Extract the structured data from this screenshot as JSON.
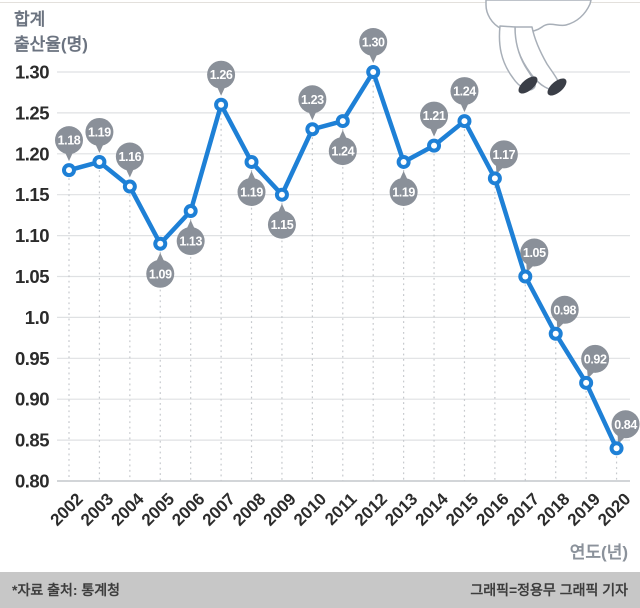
{
  "y_axis_title": {
    "line1": "합계",
    "line2": "출산율(명)"
  },
  "chart_data": {
    "type": "line",
    "title": "합계 출산율(명) 2002-2020",
    "xlabel": "연도(년)",
    "ylabel": "합계 출산율(명)",
    "x": [
      "2002",
      "2003",
      "2004",
      "2005",
      "2006",
      "2007",
      "2008",
      "2009",
      "2010",
      "2011",
      "2012",
      "2013",
      "2014",
      "2015",
      "2016",
      "2017",
      "2018",
      "2019",
      "2020"
    ],
    "values": [
      1.18,
      1.19,
      1.16,
      1.09,
      1.13,
      1.26,
      1.19,
      1.15,
      1.23,
      1.24,
      1.3,
      1.19,
      1.21,
      1.24,
      1.17,
      1.05,
      0.98,
      0.92,
      0.84
    ],
    "point_labels": [
      "1.18",
      "1.19",
      "1.16",
      "1.09",
      "1.13",
      "1.26",
      "1.19",
      "1.15",
      "1.23",
      "1.24",
      "1.30",
      "1.19",
      "1.21",
      "1.24",
      "1.17",
      "1.05",
      "0.98",
      "0.92",
      "0.84"
    ],
    "label_position": [
      "above",
      "above",
      "above",
      "below",
      "below",
      "above",
      "below",
      "below",
      "above",
      "below",
      "above",
      "below",
      "above",
      "above",
      "above_right",
      "above_right",
      "above_right",
      "above_right",
      "above_right"
    ],
    "y_ticks": [
      "1.30",
      "1.25",
      "1.20",
      "1.15",
      "1.10",
      "1.05",
      "1.0",
      "0.95",
      "0.90",
      "0.85",
      "0.80"
    ],
    "ylim": [
      0.8,
      1.3
    ],
    "grid": "horizontal solid lines at each 0.05 step; dashed vertical drop lines from each point to baseline",
    "legend": "none",
    "marker": "blue ring with white center",
    "bubble_style": "gray circle callout with tail pointing at data point"
  },
  "footer": {
    "source": "*자료 출처: 통계청",
    "credit": "그래픽=정용무 그래픽 기자"
  },
  "colors": {
    "line": "#1e80d6",
    "bubble": "#8a9099",
    "bubble_text": "#ffffff",
    "grid": "#dfe1e3",
    "baseline": "#c3c7cc",
    "drop_line": "#c6c9cd",
    "axis_text": "#2b2b2b",
    "muted_text": "#8b929b",
    "title_text": "#6b7380",
    "footer_bg": "#c7c7c7",
    "footer_text": "#3d3d3d",
    "shoe": "#3a3e47",
    "outline": "#a8afb8"
  }
}
